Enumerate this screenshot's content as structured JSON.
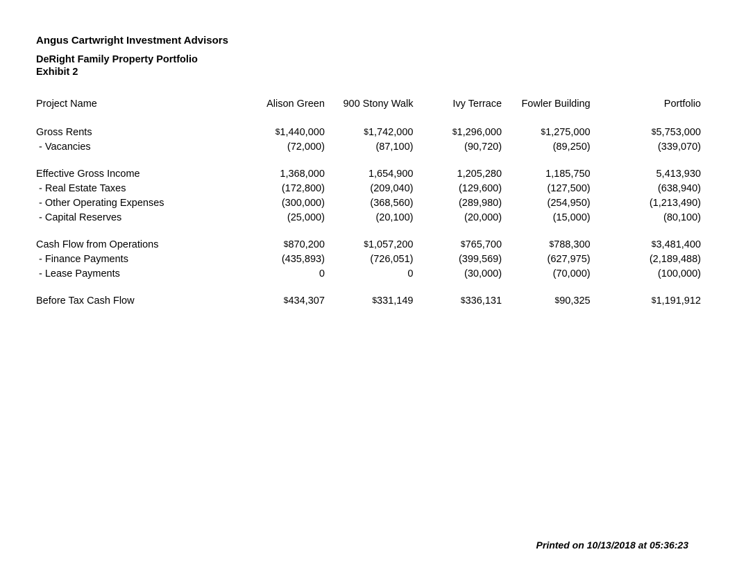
{
  "header": {
    "company": "Angus Cartwright Investment Advisors",
    "subtitle": "DeRight Family Property Portfolio",
    "exhibit": "Exhibit 2"
  },
  "columns": {
    "label_header": "Project Name",
    "c1": "Alison Green",
    "c2": "900 Stony Walk",
    "c3": "Ivy Terrace",
    "c4": "Fowler Building",
    "c5": "Portfolio"
  },
  "rows": {
    "gross_rents": {
      "label": "Gross Rents",
      "v1": "$1,440,000",
      "v2": "$1,742,000",
      "v3": "$1,296,000",
      "v4": "$1,275,000",
      "v5": "$5,753,000"
    },
    "vacancies": {
      "label": " - Vacancies",
      "v1": "(72,000)",
      "v2": "(87,100)",
      "v3": "(90,720)",
      "v4": "(89,250)",
      "v5": "(339,070)"
    },
    "egi": {
      "label": "Effective Gross Income",
      "v1": "1,368,000",
      "v2": "1,654,900",
      "v3": "1,205,280",
      "v4": "1,185,750",
      "v5": "5,413,930"
    },
    "ret": {
      "label": " - Real Estate Taxes",
      "v1": "(172,800)",
      "v2": "(209,040)",
      "v3": "(129,600)",
      "v4": "(127,500)",
      "v5": "(638,940)"
    },
    "ooe": {
      "label": " - Other Operating Expenses",
      "v1": "(300,000)",
      "v2": "(368,560)",
      "v3": "(289,980)",
      "v4": "(254,950)",
      "v5": "(1,213,490)"
    },
    "cap": {
      "label": " - Capital Reserves",
      "v1": "(25,000)",
      "v2": "(20,100)",
      "v3": "(20,000)",
      "v4": "(15,000)",
      "v5": "(80,100)"
    },
    "cfo": {
      "label": "Cash Flow from Operations",
      "v1": "$870,200",
      "v2": "$1,057,200",
      "v3": "$765,700",
      "v4": "$788,300",
      "v5": "$3,481,400"
    },
    "fin": {
      "label": " - Finance Payments",
      "v1": "(435,893)",
      "v2": "(726,051)",
      "v3": "(399,569)",
      "v4": "(627,975)",
      "v5": "(2,189,488)"
    },
    "lease": {
      "label": " - Lease Payments",
      "v1": "0",
      "v2": "0",
      "v3": "(30,000)",
      "v4": "(70,000)",
      "v5": "(100,000)"
    },
    "btcf": {
      "label": "Before Tax Cash Flow",
      "v1": "$434,307",
      "v2": "$331,149",
      "v3": "$336,131",
      "v4": "$90,325",
      "v5": "$1,191,912"
    }
  },
  "footer": "Printed on 10/13/2018 at 05:36:23"
}
